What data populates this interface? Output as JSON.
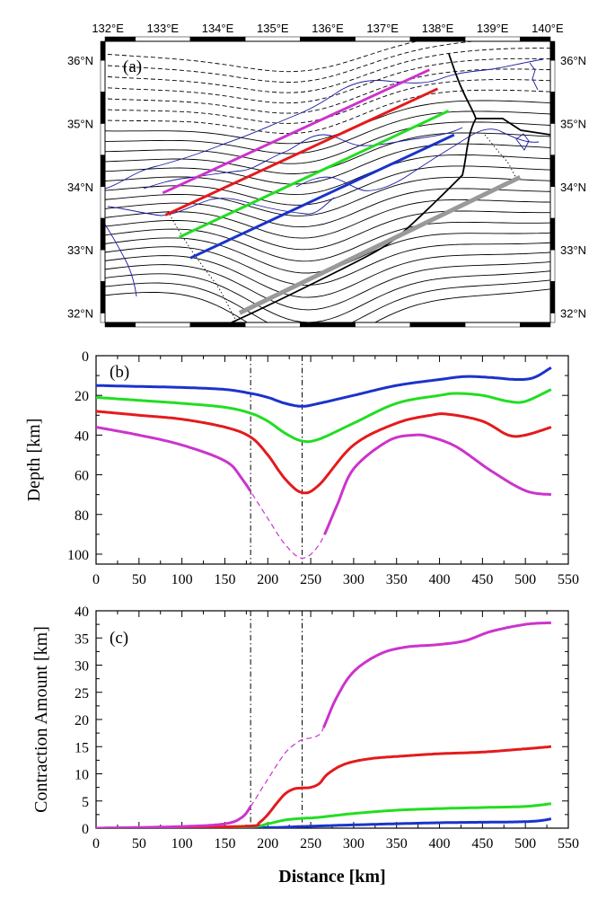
{
  "chart_data": [
    {
      "type": "map",
      "panel_label": "(a)",
      "lon_ticks": [
        "132°E",
        "133°E",
        "134°E",
        "135°E",
        "136°E",
        "137°E",
        "138°E",
        "139°E",
        "140°E"
      ],
      "lat_ticks_left": [
        "36°N",
        "35°N",
        "34°N",
        "33°N",
        "32°N"
      ],
      "lat_ticks_right": [
        "36°N",
        "35°N",
        "34°N",
        "33°N",
        "32°N"
      ],
      "lon_range": [
        131.95,
        140.05
      ],
      "lat_range": [
        31.85,
        36.3
      ],
      "profiles": [
        {
          "name": "purple",
          "color": "#cc33cc",
          "start": [
            133.0,
            33.9
          ],
          "end": [
            137.85,
            35.85
          ]
        },
        {
          "name": "red",
          "color": "#e41a1c",
          "start": [
            133.05,
            33.55
          ],
          "end": [
            138.0,
            35.55
          ]
        },
        {
          "name": "green",
          "color": "#22dd22",
          "start": [
            133.3,
            33.2
          ],
          "end": [
            138.2,
            35.2
          ]
        },
        {
          "name": "blue",
          "color": "#1a33cc",
          "start": [
            133.5,
            32.87
          ],
          "end": [
            138.3,
            34.82
          ]
        },
        {
          "name": "gray",
          "color": "#999999",
          "start": [
            134.4,
            32.0
          ],
          "end": [
            139.5,
            34.15
          ]
        }
      ]
    },
    {
      "type": "line",
      "panel_label": "(b)",
      "xlabel": "",
      "ylabel": "Depth  [km]",
      "xlim": [
        0,
        550
      ],
      "ylim": [
        0,
        105
      ],
      "y_inverted": true,
      "xticks": [
        0,
        50,
        100,
        150,
        200,
        250,
        300,
        350,
        400,
        450,
        500,
        550
      ],
      "yticks": [
        0,
        20,
        40,
        60,
        80,
        100
      ],
      "vlines": [
        180,
        240
      ],
      "series": [
        {
          "name": "blue",
          "color": "#1a33cc",
          "x": [
            0,
            50,
            100,
            150,
            180,
            200,
            220,
            240,
            260,
            300,
            350,
            400,
            430,
            460,
            490,
            510,
            530
          ],
          "y": [
            15,
            15.5,
            16,
            17,
            19,
            21,
            24,
            25.5,
            24,
            20,
            15,
            12,
            10.5,
            11,
            12,
            11,
            6
          ]
        },
        {
          "name": "green",
          "color": "#22dd22",
          "x": [
            0,
            50,
            100,
            150,
            180,
            200,
            220,
            240,
            260,
            300,
            350,
            400,
            420,
            450,
            480,
            500,
            530
          ],
          "y": [
            21,
            22.5,
            24,
            26,
            29,
            33,
            39,
            43,
            42,
            34,
            24,
            20,
            19,
            20,
            23,
            23,
            17
          ]
        },
        {
          "name": "red",
          "color": "#e41a1c",
          "x": [
            0,
            50,
            100,
            150,
            180,
            200,
            220,
            240,
            260,
            300,
            350,
            390,
            410,
            450,
            480,
            500,
            530
          ],
          "y": [
            28,
            30,
            32,
            36,
            41,
            50,
            62,
            69,
            65,
            45,
            34,
            30,
            29.5,
            33,
            40,
            40,
            36
          ]
        },
        {
          "name": "purple",
          "color": "#cc33cc",
          "x": [
            0,
            50,
            100,
            150,
            170,
            200,
            220,
            240,
            260,
            280,
            300,
            340,
            370,
            390,
            420,
            460,
            500,
            530
          ],
          "y": [
            36,
            40,
            45,
            53,
            62,
            82,
            95,
            102,
            95,
            76,
            57,
            43,
            40,
            41,
            46,
            58,
            68,
            70
          ],
          "dashed_range": [
            180,
            265
          ]
        }
      ]
    },
    {
      "type": "line",
      "panel_label": "(c)",
      "xlabel": "Distance  [km]",
      "ylabel": "Contraction Amount  [km]",
      "xlim": [
        0,
        550
      ],
      "ylim": [
        0,
        40
      ],
      "xticks": [
        0,
        50,
        100,
        150,
        200,
        250,
        300,
        350,
        400,
        450,
        500,
        550
      ],
      "yticks": [
        0,
        5,
        10,
        15,
        20,
        25,
        30,
        35,
        40
      ],
      "vlines": [
        180,
        240
      ],
      "series": [
        {
          "name": "blue",
          "color": "#1a33cc",
          "x": [
            0,
            100,
            200,
            240,
            300,
            400,
            500,
            530
          ],
          "y": [
            0,
            0,
            0.1,
            0.3,
            0.6,
            1,
            1.2,
            1.7
          ]
        },
        {
          "name": "green",
          "color": "#22dd22",
          "x": [
            0,
            100,
            180,
            200,
            220,
            240,
            260,
            300,
            350,
            400,
            450,
            500,
            530
          ],
          "y": [
            0,
            0.1,
            0.3,
            0.8,
            1.5,
            1.8,
            2,
            2.7,
            3.3,
            3.6,
            3.8,
            4,
            4.5
          ]
        },
        {
          "name": "red",
          "color": "#e41a1c",
          "x": [
            0,
            100,
            180,
            190,
            200,
            210,
            220,
            230,
            240,
            250,
            260,
            270,
            290,
            320,
            360,
            400,
            450,
            500,
            530
          ],
          "y": [
            0,
            0.1,
            0.4,
            1,
            2.5,
            4.5,
            6.3,
            7.2,
            7.4,
            7.5,
            8.2,
            10,
            11.8,
            12.8,
            13.3,
            13.7,
            14,
            14.6,
            15
          ]
        },
        {
          "name": "purple",
          "color": "#cc33cc",
          "x": [
            0,
            100,
            150,
            170,
            180,
            190,
            200,
            210,
            220,
            230,
            240,
            250,
            260,
            265,
            280,
            300,
            330,
            360,
            400,
            430,
            460,
            500,
            530
          ],
          "y": [
            0,
            0.3,
            0.8,
            2,
            4,
            6.5,
            9,
            11.5,
            13.8,
            15.3,
            16.3,
            16.6,
            17.2,
            18.5,
            24,
            28.8,
            32,
            33.3,
            33.8,
            34.5,
            36.2,
            37.5,
            37.8
          ],
          "dashed_range": [
            180,
            265
          ]
        }
      ]
    }
  ]
}
